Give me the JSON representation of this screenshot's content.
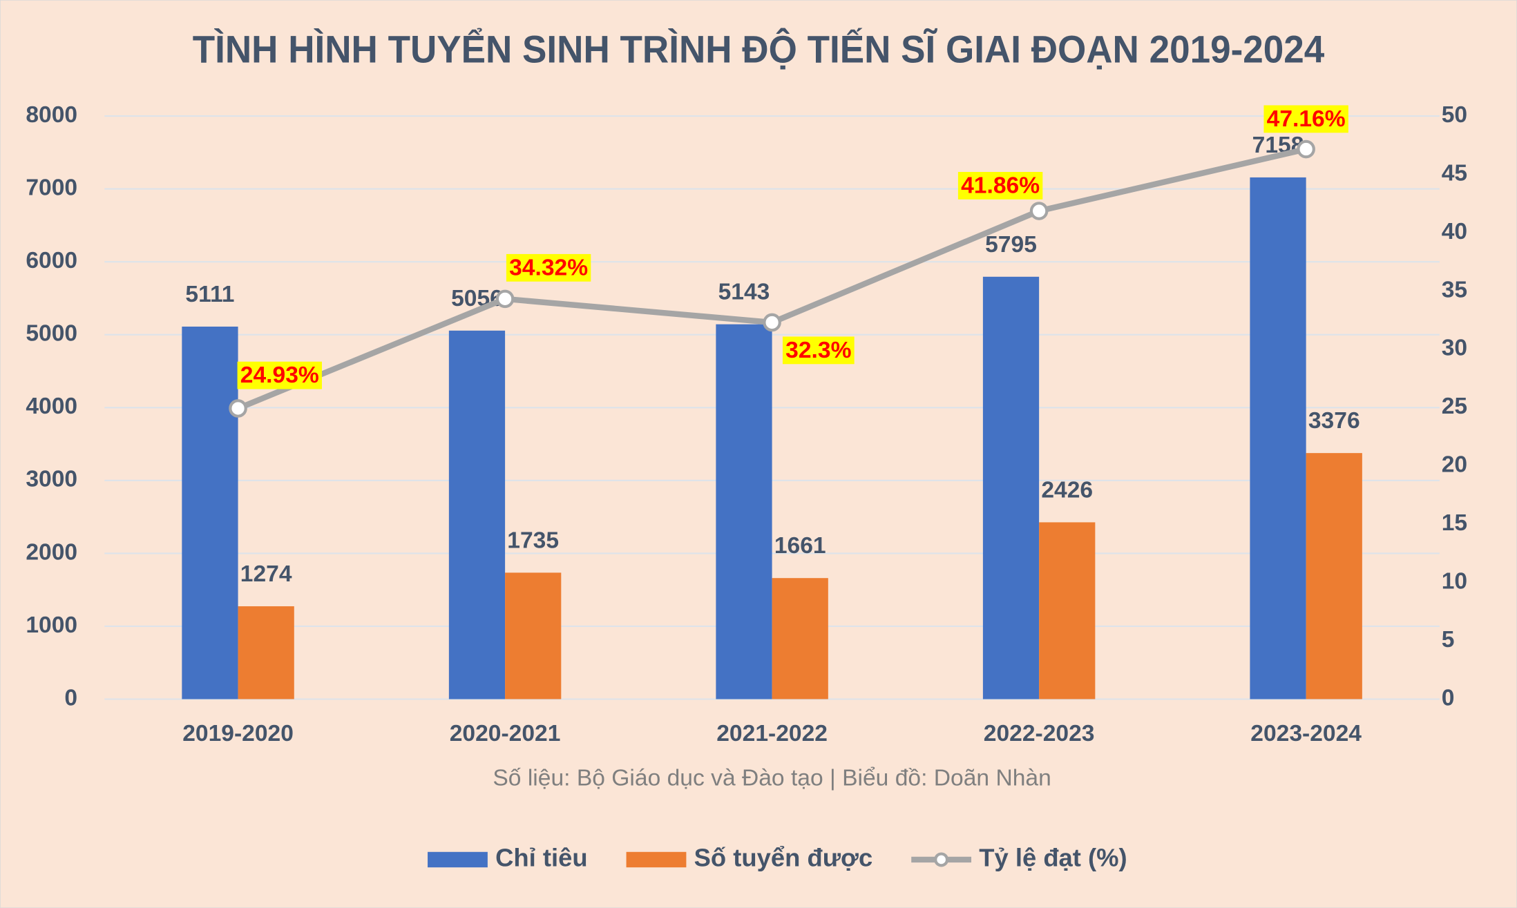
{
  "chart_data": {
    "type": "bar-line",
    "title": "TÌNH HÌNH TUYỂN SINH TRÌNH ĐỘ TIẾN SĨ GIAI ĐOẠN 2019-2024",
    "source": "Số liệu: Bộ Giáo dục và Đào tạo | Biểu đồ: Doãn Nhàn",
    "categories": [
      "2019-2020",
      "2020-2021",
      "2021-2022",
      "2022-2023",
      "2023-2024"
    ],
    "series": [
      {
        "name": "Chỉ tiêu",
        "type": "bar",
        "color": "#4472c4",
        "values": [
          5111,
          5056,
          5143,
          5795,
          7158
        ]
      },
      {
        "name": "Số tuyển được",
        "type": "bar",
        "color": "#ed7d31",
        "values": [
          1274,
          1735,
          1661,
          2426,
          3376
        ]
      },
      {
        "name": "Tỷ lệ đạt (%)",
        "type": "line",
        "axis": "y2",
        "color": "#a5a5a5",
        "values": [
          24.93,
          34.32,
          32.3,
          41.86,
          47.16
        ],
        "value_labels": [
          "24.93%",
          "34.32%",
          "32.3%",
          "41.86%",
          "47.16%"
        ]
      }
    ],
    "ylim": [
      0,
      8000
    ],
    "yticks": [
      0,
      1000,
      2000,
      3000,
      4000,
      5000,
      6000,
      7000,
      8000
    ],
    "y2lim": [
      0,
      50
    ],
    "y2ticks": [
      0,
      5,
      10,
      15,
      20,
      25,
      30,
      35,
      40,
      45,
      50
    ],
    "grid": true
  }
}
